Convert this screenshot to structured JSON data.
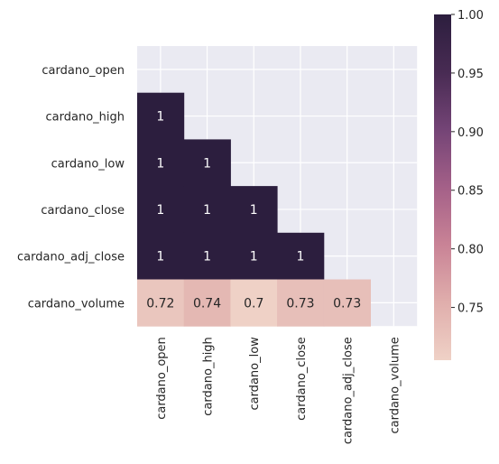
{
  "chart_data": {
    "type": "heatmap",
    "title": "",
    "labels": [
      "cardano_open",
      "cardano_high",
      "cardano_low",
      "cardano_close",
      "cardano_adj_close",
      "cardano_volume"
    ],
    "mask": "upper-triangle-including-diagonal",
    "matrix": [
      [
        null,
        null,
        null,
        null,
        null,
        null
      ],
      [
        1,
        null,
        null,
        null,
        null,
        null
      ],
      [
        1,
        1,
        null,
        null,
        null,
        null
      ],
      [
        1,
        1,
        1,
        null,
        null,
        null
      ],
      [
        1,
        1,
        1,
        1,
        null,
        null
      ],
      [
        0.72,
        0.74,
        0.7,
        0.73,
        0.73,
        null
      ]
    ],
    "annotations": [
      [
        null,
        null,
        null,
        null,
        null,
        null
      ],
      [
        "1",
        null,
        null,
        null,
        null,
        null
      ],
      [
        "1",
        "1",
        null,
        null,
        null,
        null
      ],
      [
        "1",
        "1",
        "1",
        null,
        null,
        null
      ],
      [
        "1",
        "1",
        "1",
        "1",
        null,
        null
      ],
      [
        "0.72",
        "0.74",
        "0.7",
        "0.73",
        "0.73",
        null
      ]
    ],
    "colorbar": {
      "min": 0.705,
      "max": 1.0,
      "ticks": [
        0.75,
        0.8,
        0.85,
        0.9,
        0.95,
        1.0
      ],
      "tick_labels": [
        "0.75",
        "0.80",
        "0.85",
        "0.90",
        "0.95",
        "1.00"
      ],
      "colors": [
        "#efd1c6",
        "#e0aeac",
        "#c98396",
        "#a46088",
        "#744476",
        "#482b53",
        "#2c1e3e"
      ]
    },
    "background_color": "#eaeaf2",
    "grid": true
  }
}
